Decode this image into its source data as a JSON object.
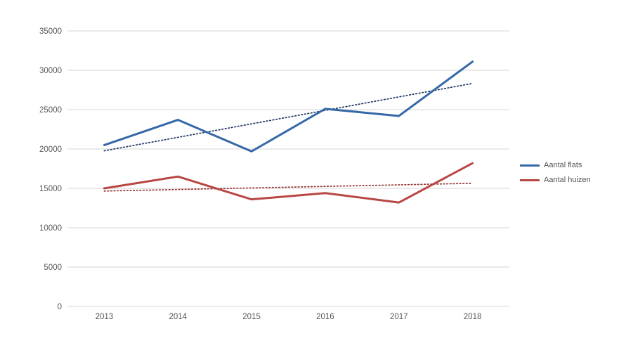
{
  "chart_data": {
    "type": "line",
    "title": "",
    "categories": [
      "2013",
      "2014",
      "2015",
      "2016",
      "2017",
      "2018"
    ],
    "series": [
      {
        "name": "Aantal flats",
        "color": "#3568A8",
        "values": [
          20500,
          23700,
          19700,
          25100,
          24200,
          31100
        ],
        "trendline": {
          "type": "linear",
          "style": "dotted",
          "color": "#1F3864"
        }
      },
      {
        "name": "Aantal huizen",
        "color": "#B84744",
        "values": [
          15000,
          16500,
          13600,
          14400,
          13200,
          18200
        ],
        "trendline": {
          "type": "linear",
          "style": "dotted",
          "color": "#943634"
        }
      }
    ],
    "y_ticks": [
      0,
      5000,
      10000,
      15000,
      20000,
      25000,
      30000,
      35000
    ],
    "ylim": [
      0,
      35000
    ],
    "xlabel": "",
    "ylabel": "",
    "grid": "horizontal",
    "legend_position": "right",
    "colors": {
      "gridline": "#D6D6D6",
      "axis_label": "#595959",
      "legend_text": "#555555",
      "background": "#FFFFFF"
    }
  }
}
